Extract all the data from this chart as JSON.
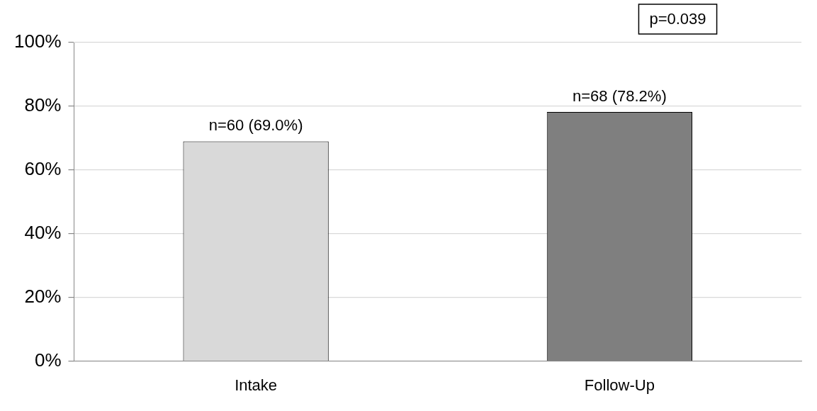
{
  "chart_data": {
    "type": "bar",
    "categories": [
      "Intake",
      "Follow-Up"
    ],
    "values": [
      69.0,
      78.2
    ],
    "colors": [
      "#d9d9d9",
      "#7f7f7f"
    ],
    "value_labels": [
      "n=60 (69.0%)",
      "n=68 (78.2%)"
    ],
    "ylim": [
      0,
      100
    ],
    "yticks": [
      {
        "value": 0,
        "label": "0%"
      },
      {
        "value": 20,
        "label": "20%"
      },
      {
        "value": 40,
        "label": "40%"
      },
      {
        "value": 60,
        "label": "60%"
      },
      {
        "value": 80,
        "label": "80%"
      },
      {
        "value": 100,
        "label": "100%"
      }
    ],
    "grid": "y",
    "legend": false,
    "annotations": [
      "p=0.039"
    ]
  }
}
